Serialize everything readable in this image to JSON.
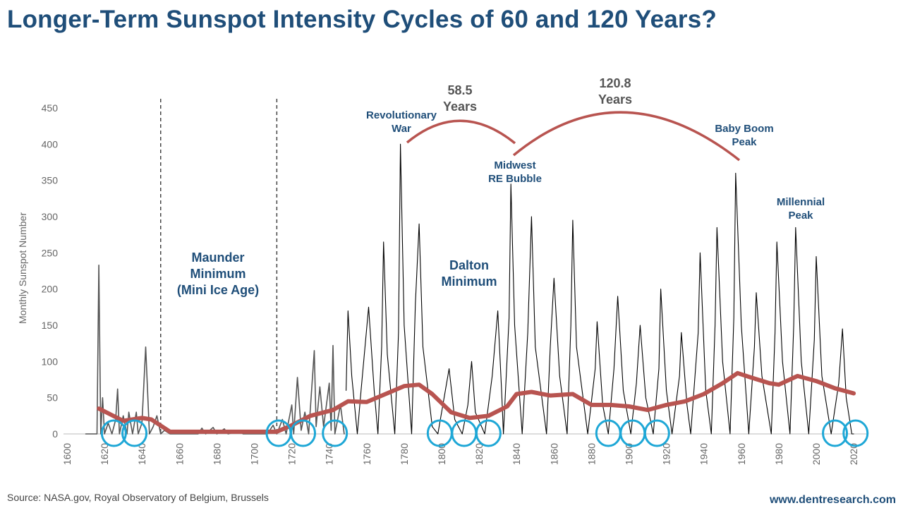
{
  "title": "Longer-Term Sunspot Intensity Cycles of 60 and 120 Years?",
  "source": "Source: NASA.gov,  Royal Observatory of Belgium, Brussels",
  "website": "www.dentresearch.com",
  "chart_data": {
    "type": "line",
    "title": "Longer-Term Sunspot Intensity Cycles of 60 and 120 Years?",
    "ylabel": "Monthly Sunspot Number",
    "xlabel": "",
    "xlim": [
      1600,
      2025
    ],
    "ylim": [
      0,
      450
    ],
    "xticks": [
      "1600",
      "1620",
      "1640",
      "1660",
      "1680",
      "1700",
      "1720",
      "1740",
      "1760",
      "1780",
      "1800",
      "1820",
      "1840",
      "1860",
      "1880",
      "1900",
      "1920",
      "1940",
      "1960",
      "1980",
      "2000",
      "2020"
    ],
    "yticks": [
      "0",
      "50",
      "100",
      "150",
      "200",
      "250",
      "300",
      "350",
      "400",
      "450"
    ],
    "grid": false,
    "colors": {
      "early": "#555555",
      "monthly": "#000000",
      "smoothed": "#b85450",
      "circles": "#1ea7d6",
      "annotation": "#1f4e79",
      "arc": "#b85450"
    },
    "series": [
      {
        "key": "early",
        "points": [
          [
            1610,
            0
          ],
          [
            1616,
            0
          ],
          [
            1617,
            233
          ],
          [
            1618,
            0
          ],
          [
            1619,
            50
          ],
          [
            1620,
            0
          ],
          [
            1622,
            15
          ],
          [
            1624,
            0
          ],
          [
            1626,
            20
          ],
          [
            1627,
            62
          ],
          [
            1628,
            0
          ],
          [
            1630,
            25
          ],
          [
            1632,
            0
          ],
          [
            1633,
            30
          ],
          [
            1635,
            0
          ],
          [
            1637,
            30
          ],
          [
            1638,
            0
          ],
          [
            1640,
            15
          ],
          [
            1642,
            120
          ],
          [
            1644,
            0
          ],
          [
            1646,
            10
          ],
          [
            1648,
            25
          ],
          [
            1650,
            0
          ],
          [
            1652,
            5
          ],
          [
            1655,
            0
          ],
          [
            1670,
            0
          ],
          [
            1672,
            8
          ],
          [
            1674,
            0
          ],
          [
            1678,
            9
          ],
          [
            1680,
            0
          ],
          [
            1684,
            7
          ],
          [
            1686,
            0
          ],
          [
            1692,
            4
          ],
          [
            1694,
            0
          ],
          [
            1705,
            0
          ],
          [
            1707,
            0
          ],
          [
            1710,
            12
          ],
          [
            1712,
            0
          ],
          [
            1715,
            20
          ],
          [
            1717,
            0
          ],
          [
            1720,
            40
          ],
          [
            1721,
            0
          ],
          [
            1723,
            78
          ],
          [
            1725,
            5
          ],
          [
            1727,
            30
          ],
          [
            1729,
            0
          ],
          [
            1732,
            115
          ],
          [
            1733,
            10
          ],
          [
            1735,
            65
          ],
          [
            1737,
            10
          ],
          [
            1740,
            70
          ],
          [
            1741,
            5
          ],
          [
            1742,
            122
          ],
          [
            1743,
            0
          ],
          [
            1746,
            40
          ],
          [
            1748,
            0
          ]
        ]
      },
      {
        "key": "monthly",
        "points": [
          [
            1749,
            60
          ],
          [
            1750,
            170
          ],
          [
            1752,
            80
          ],
          [
            1755,
            0
          ],
          [
            1757,
            60
          ],
          [
            1761,
            175
          ],
          [
            1764,
            60
          ],
          [
            1766,
            0
          ],
          [
            1768,
            120
          ],
          [
            1769,
            265
          ],
          [
            1771,
            110
          ],
          [
            1775,
            0
          ],
          [
            1777,
            140
          ],
          [
            1778,
            400
          ],
          [
            1780,
            150
          ],
          [
            1784,
            0
          ],
          [
            1786,
            180
          ],
          [
            1788,
            290
          ],
          [
            1790,
            120
          ],
          [
            1795,
            10
          ],
          [
            1798,
            0
          ],
          [
            1802,
            60
          ],
          [
            1804,
            90
          ],
          [
            1807,
            20
          ],
          [
            1811,
            0
          ],
          [
            1814,
            40
          ],
          [
            1816,
            100
          ],
          [
            1818,
            30
          ],
          [
            1823,
            0
          ],
          [
            1827,
            80
          ],
          [
            1830,
            170
          ],
          [
            1832,
            60
          ],
          [
            1833,
            0
          ],
          [
            1836,
            160
          ],
          [
            1837,
            345
          ],
          [
            1839,
            150
          ],
          [
            1843,
            0
          ],
          [
            1846,
            140
          ],
          [
            1848,
            300
          ],
          [
            1850,
            120
          ],
          [
            1856,
            0
          ],
          [
            1858,
            120
          ],
          [
            1860,
            215
          ],
          [
            1863,
            80
          ],
          [
            1867,
            0
          ],
          [
            1869,
            150
          ],
          [
            1870,
            295
          ],
          [
            1872,
            120
          ],
          [
            1878,
            0
          ],
          [
            1882,
            90
          ],
          [
            1883,
            155
          ],
          [
            1886,
            40
          ],
          [
            1889,
            0
          ],
          [
            1892,
            90
          ],
          [
            1894,
            190
          ],
          [
            1897,
            60
          ],
          [
            1901,
            0
          ],
          [
            1904,
            70
          ],
          [
            1906,
            150
          ],
          [
            1909,
            50
          ],
          [
            1913,
            0
          ],
          [
            1916,
            90
          ],
          [
            1917,
            200
          ],
          [
            1920,
            60
          ],
          [
            1923,
            0
          ],
          [
            1927,
            80
          ],
          [
            1928,
            140
          ],
          [
            1931,
            40
          ],
          [
            1933,
            0
          ],
          [
            1937,
            140
          ],
          [
            1938,
            250
          ],
          [
            1941,
            60
          ],
          [
            1944,
            0
          ],
          [
            1946,
            150
          ],
          [
            1947,
            285
          ],
          [
            1950,
            100
          ],
          [
            1954,
            0
          ],
          [
            1956,
            160
          ],
          [
            1957,
            360
          ],
          [
            1960,
            150
          ],
          [
            1964,
            0
          ],
          [
            1967,
            120
          ],
          [
            1968,
            195
          ],
          [
            1971,
            80
          ],
          [
            1976,
            0
          ],
          [
            1978,
            140
          ],
          [
            1979,
            265
          ],
          [
            1982,
            100
          ],
          [
            1986,
            0
          ],
          [
            1988,
            150
          ],
          [
            1989,
            285
          ],
          [
            1992,
            100
          ],
          [
            1996,
            0
          ],
          [
            1999,
            130
          ],
          [
            2000,
            245
          ],
          [
            2003,
            80
          ],
          [
            2008,
            0
          ],
          [
            2012,
            70
          ],
          [
            2014,
            145
          ],
          [
            2016,
            50
          ],
          [
            2019,
            0
          ],
          [
            2020,
            0
          ]
        ]
      },
      {
        "key": "smoothed",
        "points": [
          [
            1617,
            35
          ],
          [
            1630,
            18
          ],
          [
            1640,
            22
          ],
          [
            1645,
            20
          ],
          [
            1655,
            3
          ],
          [
            1700,
            3
          ],
          [
            1712,
            3
          ],
          [
            1720,
            12
          ],
          [
            1730,
            25
          ],
          [
            1742,
            33
          ],
          [
            1750,
            45
          ],
          [
            1760,
            44
          ],
          [
            1770,
            55
          ],
          [
            1780,
            66
          ],
          [
            1788,
            68
          ],
          [
            1795,
            55
          ],
          [
            1805,
            30
          ],
          [
            1815,
            22
          ],
          [
            1825,
            25
          ],
          [
            1835,
            38
          ],
          [
            1840,
            55
          ],
          [
            1848,
            58
          ],
          [
            1858,
            53
          ],
          [
            1870,
            55
          ],
          [
            1880,
            40
          ],
          [
            1890,
            40
          ],
          [
            1900,
            38
          ],
          [
            1910,
            33
          ],
          [
            1920,
            40
          ],
          [
            1930,
            45
          ],
          [
            1940,
            55
          ],
          [
            1950,
            70
          ],
          [
            1958,
            84
          ],
          [
            1965,
            78
          ],
          [
            1975,
            70
          ],
          [
            1980,
            68
          ],
          [
            1990,
            80
          ],
          [
            2000,
            73
          ],
          [
            2010,
            63
          ],
          [
            2020,
            56
          ]
        ]
      }
    ],
    "minima_circles": [
      1625,
      1636,
      1713,
      1726,
      1743,
      1799,
      1812,
      1825,
      1889,
      1902,
      1915,
      2010,
      2021
    ],
    "dashed_lines": [
      1650,
      1712
    ],
    "annotations": {
      "revolutionary_war": [
        "Revolutionary",
        "War"
      ],
      "midwest": [
        "Midwest",
        "RE Bubble"
      ],
      "baby_boom": [
        "Baby Boom",
        "Peak"
      ],
      "millennial": [
        "Millennial",
        "Peak"
      ],
      "maunder": [
        "Maunder",
        "Minimum",
        "(Mini Ice Age)"
      ],
      "dalton": [
        "Dalton",
        "Minimum"
      ],
      "cycle1": [
        "58.5",
        "Years"
      ],
      "cycle2": [
        "120.8",
        "Years"
      ]
    },
    "arcs": [
      [
        1778,
        1837
      ],
      [
        1837,
        1957
      ]
    ]
  }
}
